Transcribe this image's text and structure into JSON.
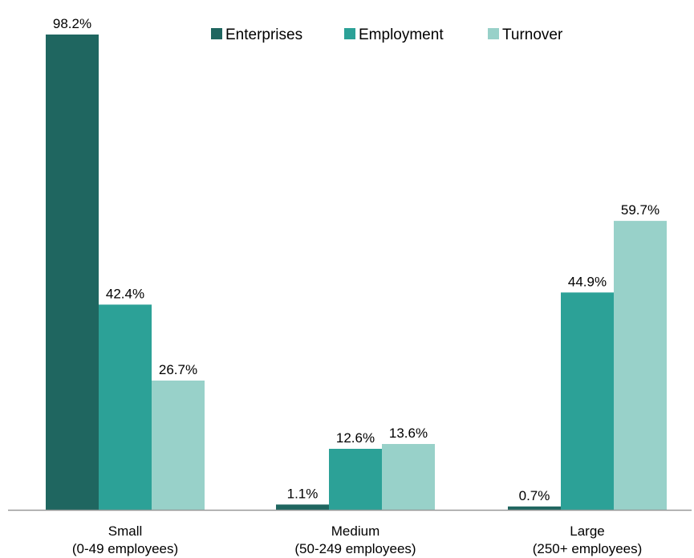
{
  "chart_data": {
    "type": "bar",
    "categories": [
      [
        "Small",
        "(0-49 employees)"
      ],
      [
        "Medium",
        "(50-249 employees)"
      ],
      [
        "Large",
        "(250+ employees)"
      ]
    ],
    "series": [
      {
        "name": "Enterprises",
        "values": [
          98.2,
          1.1,
          0.7
        ],
        "labels": [
          "98.2%",
          "1.1%",
          "0.7%"
        ],
        "color": "#1f6660"
      },
      {
        "name": "Employment",
        "values": [
          42.4,
          12.6,
          44.9
        ],
        "labels": [
          "42.4%",
          "12.6%",
          "44.9%"
        ],
        "color": "#2ca197"
      },
      {
        "name": "Turnover",
        "values": [
          26.7,
          13.6,
          59.7
        ],
        "labels": [
          "26.7%",
          "13.6%",
          "59.7%"
        ],
        "color": "#98d1c9"
      }
    ],
    "ylim": [
      0,
      100
    ],
    "legend_position": "top-center",
    "grid": false,
    "axis_color": "#999999"
  }
}
